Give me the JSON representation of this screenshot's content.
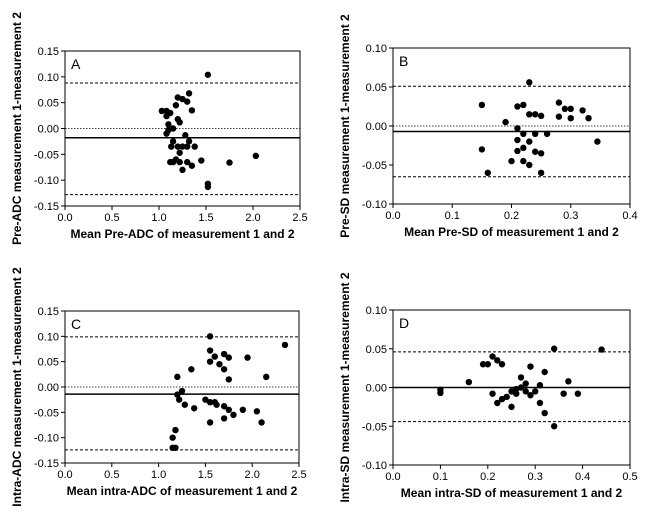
{
  "chart_data": [
    {
      "type": "scatter",
      "panel": "A",
      "xlabel": "Mean Pre-ADC of measurement 1 and 2",
      "ylabel": "Pre-ADC measurement 1-measurement 2",
      "xlim": [
        0.0,
        2.5
      ],
      "ylim": [
        -0.15,
        0.15
      ],
      "xticks": [
        "0.0",
        "0.5",
        "1.0",
        "1.5",
        "2.0",
        "2.5"
      ],
      "xtick_values": [
        0.0,
        0.5,
        1.0,
        1.5,
        2.0,
        2.5
      ],
      "yticks": [
        "0.15",
        "0.10",
        "0.05",
        "0.00",
        "-0.05",
        "-0.10",
        "-0.15"
      ],
      "ytick_values": [
        0.15,
        0.1,
        0.05,
        0.0,
        -0.05,
        -0.1,
        -0.15
      ],
      "mean_line": -0.018,
      "upper_loa": 0.088,
      "lower_loa": -0.128,
      "zero_line": 0.0,
      "points": [
        [
          1.52,
          0.104
        ],
        [
          1.32,
          0.068
        ],
        [
          1.2,
          0.06
        ],
        [
          1.25,
          0.057
        ],
        [
          1.3,
          0.052
        ],
        [
          1.18,
          0.045
        ],
        [
          1.03,
          0.034
        ],
        [
          1.08,
          0.034
        ],
        [
          1.12,
          0.03
        ],
        [
          1.08,
          0.024
        ],
        [
          1.35,
          0.035
        ],
        [
          1.2,
          0.018
        ],
        [
          1.22,
          0.012
        ],
        [
          1.1,
          0.008
        ],
        [
          1.15,
          0.0
        ],
        [
          1.1,
          -0.003
        ],
        [
          1.08,
          -0.01
        ],
        [
          1.28,
          -0.013
        ],
        [
          1.15,
          -0.025
        ],
        [
          1.32,
          -0.025
        ],
        [
          1.13,
          -0.035
        ],
        [
          1.2,
          -0.035
        ],
        [
          1.25,
          -0.035
        ],
        [
          1.3,
          -0.035
        ],
        [
          1.38,
          -0.035
        ],
        [
          1.22,
          -0.047
        ],
        [
          1.18,
          -0.06
        ],
        [
          1.12,
          -0.065
        ],
        [
          1.15,
          -0.065
        ],
        [
          1.22,
          -0.065
        ],
        [
          1.3,
          -0.065
        ],
        [
          1.45,
          -0.062
        ],
        [
          1.75,
          -0.066
        ],
        [
          2.03,
          -0.053
        ],
        [
          1.35,
          -0.072
        ],
        [
          1.25,
          -0.08
        ],
        [
          1.52,
          -0.107
        ],
        [
          1.52,
          -0.113
        ]
      ]
    },
    {
      "type": "scatter",
      "panel": "B",
      "xlabel": "Mean Pre-SD of measurement 1 and 2",
      "ylabel": "Pre-SD measurement 1-measurement 2",
      "xlim": [
        0.0,
        0.4
      ],
      "ylim": [
        -0.1,
        0.1
      ],
      "xticks": [
        "0.0",
        "0.1",
        "0.2",
        "0.3",
        "0.4"
      ],
      "xtick_values": [
        0.0,
        0.1,
        0.2,
        0.3,
        0.4
      ],
      "yticks": [
        "0.10",
        "0.05",
        "0.00",
        "-0.05",
        "-0.10"
      ],
      "ytick_values": [
        0.1,
        0.05,
        0.0,
        -0.05,
        -0.1
      ],
      "mean_line": -0.007,
      "upper_loa": 0.051,
      "lower_loa": -0.065,
      "zero_line": 0.0,
      "points": [
        [
          0.23,
          0.056
        ],
        [
          0.28,
          0.03
        ],
        [
          0.21,
          0.025
        ],
        [
          0.22,
          0.027
        ],
        [
          0.29,
          0.022
        ],
        [
          0.3,
          0.022
        ],
        [
          0.32,
          0.02
        ],
        [
          0.15,
          0.027
        ],
        [
          0.23,
          0.015
        ],
        [
          0.24,
          0.015
        ],
        [
          0.25,
          0.013
        ],
        [
          0.28,
          0.012
        ],
        [
          0.3,
          0.01
        ],
        [
          0.33,
          0.01
        ],
        [
          0.19,
          0.005
        ],
        [
          0.21,
          -0.003
        ],
        [
          0.22,
          -0.01
        ],
        [
          0.24,
          -0.01
        ],
        [
          0.26,
          -0.01
        ],
        [
          0.21,
          -0.018
        ],
        [
          0.23,
          -0.02
        ],
        [
          0.345,
          -0.02
        ],
        [
          0.22,
          -0.028
        ],
        [
          0.15,
          -0.03
        ],
        [
          0.21,
          -0.032
        ],
        [
          0.24,
          -0.033
        ],
        [
          0.25,
          -0.035
        ],
        [
          0.2,
          -0.045
        ],
        [
          0.22,
          -0.045
        ],
        [
          0.23,
          -0.05
        ],
        [
          0.16,
          -0.06
        ],
        [
          0.25,
          -0.06
        ]
      ]
    },
    {
      "type": "scatter",
      "panel": "C",
      "xlabel": "Mean intra-ADC of measurement 1 and 2",
      "ylabel": "Intra-ADC measurement 1-measurement 2",
      "xlim": [
        0.0,
        2.5
      ],
      "ylim": [
        -0.15,
        0.15
      ],
      "xticks": [
        "0.0",
        "0.5",
        "1.0",
        "1.5",
        "2.0",
        "2.5"
      ],
      "xtick_values": [
        0.0,
        0.5,
        1.0,
        1.5,
        2.0,
        2.5
      ],
      "yticks": [
        "0.15",
        "0.10",
        "0.05",
        "0.00",
        "-0.05",
        "-0.10",
        "-0.15"
      ],
      "ytick_values": [
        0.15,
        0.1,
        0.05,
        0.0,
        -0.05,
        -0.1,
        -0.15
      ],
      "mean_line": -0.014,
      "upper_loa": 0.099,
      "lower_loa": -0.124,
      "zero_line": 0.0,
      "points": [
        [
          1.55,
          0.1
        ],
        [
          2.35,
          0.083
        ],
        [
          1.55,
          0.072
        ],
        [
          1.7,
          0.065
        ],
        [
          1.6,
          0.06
        ],
        [
          1.75,
          0.058
        ],
        [
          1.95,
          0.058
        ],
        [
          1.55,
          0.05
        ],
        [
          1.65,
          0.045
        ],
        [
          1.35,
          0.035
        ],
        [
          1.7,
          0.035
        ],
        [
          2.15,
          0.02
        ],
        [
          1.2,
          0.02
        ],
        [
          1.75,
          0.015
        ],
        [
          1.25,
          -0.008
        ],
        [
          1.2,
          -0.015
        ],
        [
          1.22,
          -0.025
        ],
        [
          1.28,
          -0.035
        ],
        [
          1.5,
          -0.025
        ],
        [
          1.55,
          -0.03
        ],
        [
          1.6,
          -0.03
        ],
        [
          1.62,
          -0.035
        ],
        [
          1.38,
          -0.042
        ],
        [
          1.7,
          -0.038
        ],
        [
          1.75,
          -0.045
        ],
        [
          1.9,
          -0.045
        ],
        [
          2.05,
          -0.048
        ],
        [
          1.8,
          -0.055
        ],
        [
          1.55,
          -0.07
        ],
        [
          1.7,
          -0.062
        ],
        [
          2.1,
          -0.07
        ],
        [
          1.18,
          -0.085
        ],
        [
          1.15,
          -0.1
        ],
        [
          1.15,
          -0.12
        ],
        [
          1.18,
          -0.12
        ]
      ]
    },
    {
      "type": "scatter",
      "panel": "D",
      "xlabel": "Mean intra-SD of measurement 1 and 2",
      "ylabel": "Intra-SD measurement 1-measurement 2",
      "xlim": [
        0.0,
        0.5
      ],
      "ylim": [
        -0.1,
        0.1
      ],
      "xticks": [
        "0.0",
        "0.1",
        "0.2",
        "0.3",
        "0.4",
        "0.5"
      ],
      "xtick_values": [
        0.0,
        0.1,
        0.2,
        0.3,
        0.4,
        0.5
      ],
      "yticks": [
        "0.10",
        "0.05",
        "0.00",
        "-0.05",
        "-0.10"
      ],
      "ytick_values": [
        0.1,
        0.05,
        0.0,
        -0.05,
        -0.1
      ],
      "mean_line": 0.0,
      "upper_loa": 0.046,
      "lower_loa": -0.044,
      "zero_line": 0.0,
      "points": [
        [
          0.34,
          0.05
        ],
        [
          0.44,
          0.049
        ],
        [
          0.21,
          0.04
        ],
        [
          0.22,
          0.035
        ],
        [
          0.19,
          0.03
        ],
        [
          0.2,
          0.03
        ],
        [
          0.29,
          0.027
        ],
        [
          0.23,
          0.03
        ],
        [
          0.32,
          0.02
        ],
        [
          0.27,
          0.013
        ],
        [
          0.37,
          0.008
        ],
        [
          0.16,
          0.007
        ],
        [
          0.28,
          0.005
        ],
        [
          0.31,
          0.003
        ],
        [
          0.27,
          0.0
        ],
        [
          0.26,
          -0.002
        ],
        [
          0.1,
          -0.003
        ],
        [
          0.1,
          -0.007
        ],
        [
          0.25,
          -0.005
        ],
        [
          0.28,
          -0.005
        ],
        [
          0.3,
          -0.005
        ],
        [
          0.26,
          -0.008
        ],
        [
          0.29,
          -0.01
        ],
        [
          0.21,
          -0.008
        ],
        [
          0.39,
          -0.008
        ],
        [
          0.36,
          -0.008
        ],
        [
          0.24,
          -0.012
        ],
        [
          0.23,
          -0.015
        ],
        [
          0.22,
          -0.02
        ],
        [
          0.31,
          -0.02
        ],
        [
          0.25,
          -0.025
        ],
        [
          0.32,
          -0.033
        ],
        [
          0.34,
          -0.05
        ]
      ]
    }
  ]
}
